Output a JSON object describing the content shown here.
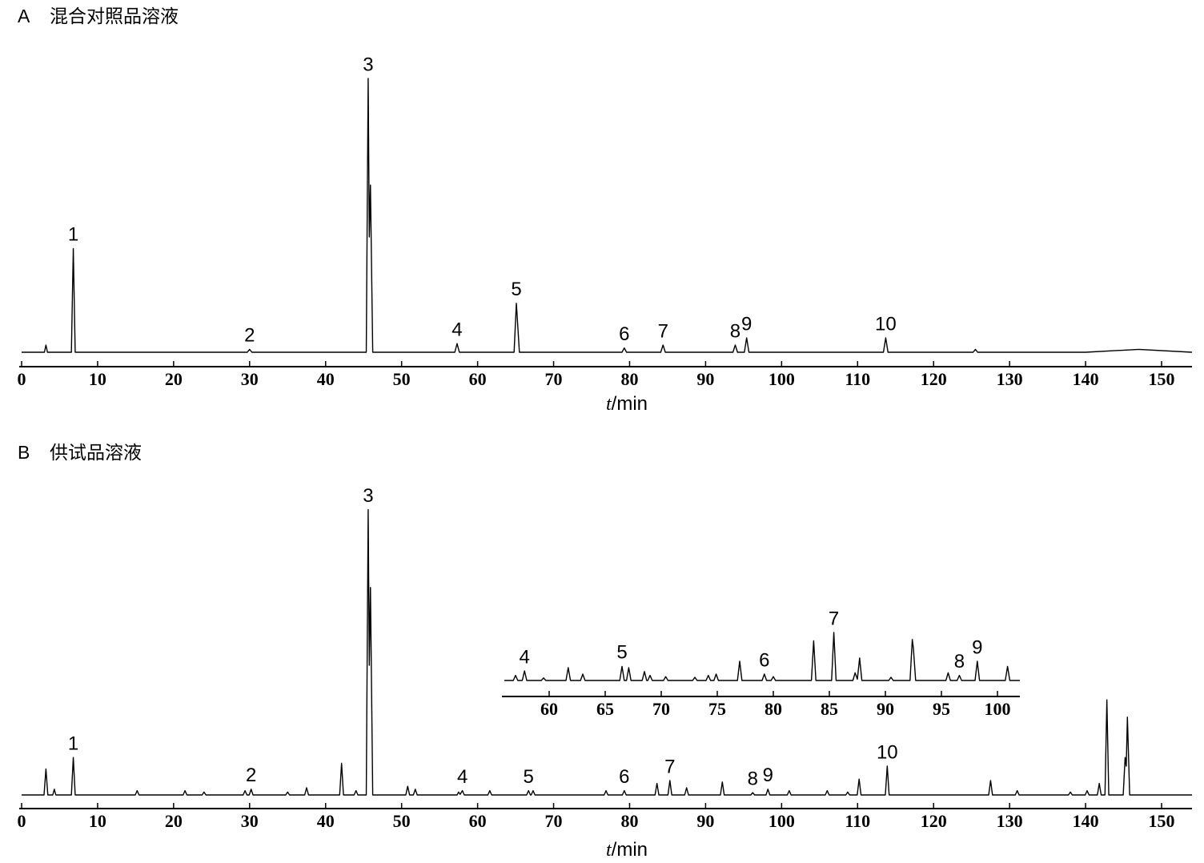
{
  "chart_data": [
    {
      "type": "line",
      "panel": "A",
      "title": "混合对照品溶液",
      "xlabel": {
        "symbol": "t",
        "unit": "/min"
      },
      "xlim": [
        0,
        154
      ],
      "xticks": [
        0,
        10,
        20,
        30,
        40,
        50,
        60,
        70,
        80,
        90,
        100,
        110,
        120,
        130,
        140,
        150
      ],
      "ylim": [
        0,
        100
      ],
      "x": [
        0,
        3.0,
        3.2,
        3.4,
        6.55,
        6.8,
        7.05,
        29.7,
        30,
        30.3,
        45.35,
        45.6,
        45.75,
        45.9,
        46.2,
        57.0,
        57.3,
        57.6,
        64.8,
        65.1,
        65.5,
        79.0,
        79.3,
        79.6,
        84.1,
        84.4,
        84.7,
        93.6,
        93.9,
        94.2,
        95.1,
        95.4,
        95.7,
        113.4,
        113.7,
        114.0,
        125.2,
        125.5,
        125.8,
        140,
        147,
        154
      ],
      "series": [
        {
          "color": "#000000",
          "values": [
            0,
            0,
            2.5,
            0,
            0,
            36,
            0,
            0,
            1,
            0,
            0,
            95,
            40,
            58,
            0,
            0,
            3,
            0,
            0,
            17,
            0,
            0,
            1.5,
            0,
            0,
            2.5,
            0,
            0,
            2.5,
            0,
            0,
            5,
            0,
            0,
            5,
            0,
            0,
            1,
            0,
            0,
            1,
            0
          ]
        }
      ],
      "peak_labels": [
        {
          "label": "1",
          "x": 6.8
        },
        {
          "label": "2",
          "x": 30
        },
        {
          "label": "3",
          "x": 45.6
        },
        {
          "label": "4",
          "x": 57.3
        },
        {
          "label": "5",
          "x": 65.1
        },
        {
          "label": "6",
          "x": 79.3
        },
        {
          "label": "7",
          "x": 84.4
        },
        {
          "label": "8",
          "x": 93.9
        },
        {
          "label": "9",
          "x": 95.4
        },
        {
          "label": "10",
          "x": 113.7
        }
      ]
    },
    {
      "type": "line",
      "panel": "B",
      "title": "供试品溶液",
      "xlabel": {
        "symbol": "t",
        "unit": "/min"
      },
      "xlim": [
        0,
        154
      ],
      "xticks": [
        0,
        10,
        20,
        30,
        40,
        50,
        60,
        70,
        80,
        90,
        100,
        110,
        120,
        130,
        140,
        150
      ],
      "ylim": [
        0,
        100
      ],
      "x": [
        0,
        2.95,
        3.2,
        3.45,
        4.1,
        4.3,
        4.5,
        6.55,
        6.8,
        7.05,
        14.95,
        15.2,
        15.45,
        21.25,
        21.5,
        21.75,
        23.75,
        24,
        24.25,
        29.15,
        29.4,
        29.65,
        29.95,
        30.2,
        30.45,
        34.75,
        35,
        35.25,
        37.25,
        37.5,
        37.75,
        41.85,
        42.1,
        42.35,
        43.75,
        44,
        44.25,
        45.35,
        45.6,
        45.75,
        45.9,
        46.2,
        50.55,
        50.8,
        51.05,
        51.55,
        51.8,
        52.05,
        57.3,
        57.5,
        57.7,
        58,
        58.25,
        61.35,
        61.6,
        61.85,
        66.45,
        66.7,
        66.95,
        67.05,
        67.3,
        67.55,
        76.65,
        76.9,
        77.15,
        79.05,
        79.3,
        79.55,
        83.35,
        83.6,
        83.85,
        85.05,
        85.3,
        85.55,
        87.25,
        87.5,
        87.75,
        91.95,
        92.2,
        92.45,
        95.95,
        96.2,
        96.45,
        97.95,
        98.2,
        98.45,
        100.75,
        101,
        101.25,
        105.75,
        106,
        106.25,
        108.45,
        108.7,
        108.95,
        109.95,
        110.2,
        110.45,
        113.65,
        113.9,
        114.15,
        127.25,
        127.5,
        127.75,
        130.75,
        131,
        131.25,
        137.75,
        138,
        138.25,
        139.95,
        140.2,
        140.45,
        141.55,
        141.8,
        142.05,
        142.55,
        142.8,
        143.05,
        144.95,
        145.2,
        145.35,
        145.5,
        145.8,
        154
      ],
      "series": [
        {
          "color": "#000000",
          "values": [
            0,
            0,
            9,
            0,
            0,
            2,
            0,
            0,
            13,
            0,
            0,
            1.5,
            0,
            0,
            1.5,
            0,
            0,
            1,
            0,
            0,
            1.5,
            0,
            0,
            2,
            0,
            0,
            1,
            0,
            0,
            2.5,
            0,
            0,
            11,
            0,
            0,
            1.5,
            0,
            0,
            99,
            45,
            72,
            0,
            0,
            3,
            0,
            0,
            2,
            0,
            0,
            1,
            0.2,
            1.5,
            0,
            0,
            1.5,
            0,
            0,
            1.5,
            0,
            0,
            1.5,
            0,
            0,
            1.5,
            0,
            0,
            1.5,
            0,
            0,
            4,
            0,
            0,
            5,
            0,
            0,
            2.5,
            0,
            0,
            4.5,
            0,
            0,
            0.8,
            0,
            0,
            2,
            0,
            0,
            1.5,
            0,
            0,
            1.5,
            0,
            0,
            1,
            0,
            0,
            5.5,
            0,
            0,
            10,
            0,
            0,
            5,
            0,
            0,
            1.5,
            0,
            0,
            1,
            0,
            0,
            1.5,
            0,
            0,
            4,
            0,
            0,
            33,
            0,
            0,
            13,
            10,
            27,
            0,
            0
          ]
        }
      ],
      "peak_labels": [
        {
          "label": "1",
          "x": 6.8
        },
        {
          "label": "2",
          "x": 30.2
        },
        {
          "label": "3",
          "x": 45.6
        },
        {
          "label": "4",
          "x": 58
        },
        {
          "label": "5",
          "x": 66.7
        },
        {
          "label": "6",
          "x": 79.3
        },
        {
          "label": "7",
          "x": 85.3
        },
        {
          "label": "8",
          "x": 96.2
        },
        {
          "label": "9",
          "x": 98.2
        },
        {
          "label": "10",
          "x": 113.9
        }
      ]
    },
    {
      "type": "line",
      "inset": true,
      "xlim": [
        56,
        102
      ],
      "xticks": [
        60,
        65,
        70,
        75,
        80,
        85,
        90,
        95,
        100
      ],
      "ylim": [
        0,
        100
      ],
      "x": [
        56,
        56.8,
        57,
        57.2,
        57.6,
        57.8,
        58.0,
        59.3,
        59.5,
        59.7,
        61.5,
        61.7,
        61.9,
        62.8,
        63,
        63.2,
        66.3,
        66.5,
        66.7,
        66.9,
        67.1,
        67.3,
        68.3,
        68.5,
        68.7,
        68.8,
        69,
        69.2,
        70.2,
        70.4,
        70.6,
        72.8,
        73,
        73.2,
        74,
        74.2,
        74.4,
        74.7,
        74.9,
        75.1,
        76.8,
        77,
        77.2,
        79,
        79.2,
        79.4,
        79.8,
        80,
        80.2,
        83.4,
        83.6,
        83.8,
        85.2,
        85.4,
        85.6,
        87.1,
        87.3,
        87.5,
        87.7,
        87.9,
        90.3,
        90.5,
        90.7,
        92.2,
        92.4,
        92.5,
        92.7,
        95.4,
        95.6,
        95.8,
        96.4,
        96.6,
        96.8,
        98,
        98.2,
        98.4,
        100.7,
        100.9,
        101.1,
        102
      ],
      "series": [
        {
          "color": "#000000",
          "values": [
            0,
            0,
            8,
            0,
            0,
            15,
            0,
            0,
            4,
            0,
            0,
            20,
            0,
            0,
            10,
            0,
            0,
            22,
            0,
            0,
            20,
            0,
            0,
            14,
            0,
            0,
            8,
            0,
            0,
            6,
            0,
            0,
            5,
            0,
            0,
            8,
            0,
            0,
            10,
            0,
            0,
            30,
            0,
            0,
            10,
            0,
            0,
            6,
            0,
            0,
            62,
            0,
            0,
            75,
            0,
            0,
            12,
            2,
            35,
            0,
            0,
            5,
            0,
            0,
            64,
            50,
            0,
            0,
            12,
            0,
            0,
            8,
            0,
            0,
            30,
            0,
            0,
            22,
            0,
            0
          ]
        }
      ],
      "peak_labels": [
        {
          "label": "4",
          "x": 57.8
        },
        {
          "label": "5",
          "x": 66.5
        },
        {
          "label": "6",
          "x": 79.2
        },
        {
          "label": "7",
          "x": 85.4
        },
        {
          "label": "8",
          "x": 96.6
        },
        {
          "label": "9",
          "x": 98.2
        }
      ]
    }
  ]
}
